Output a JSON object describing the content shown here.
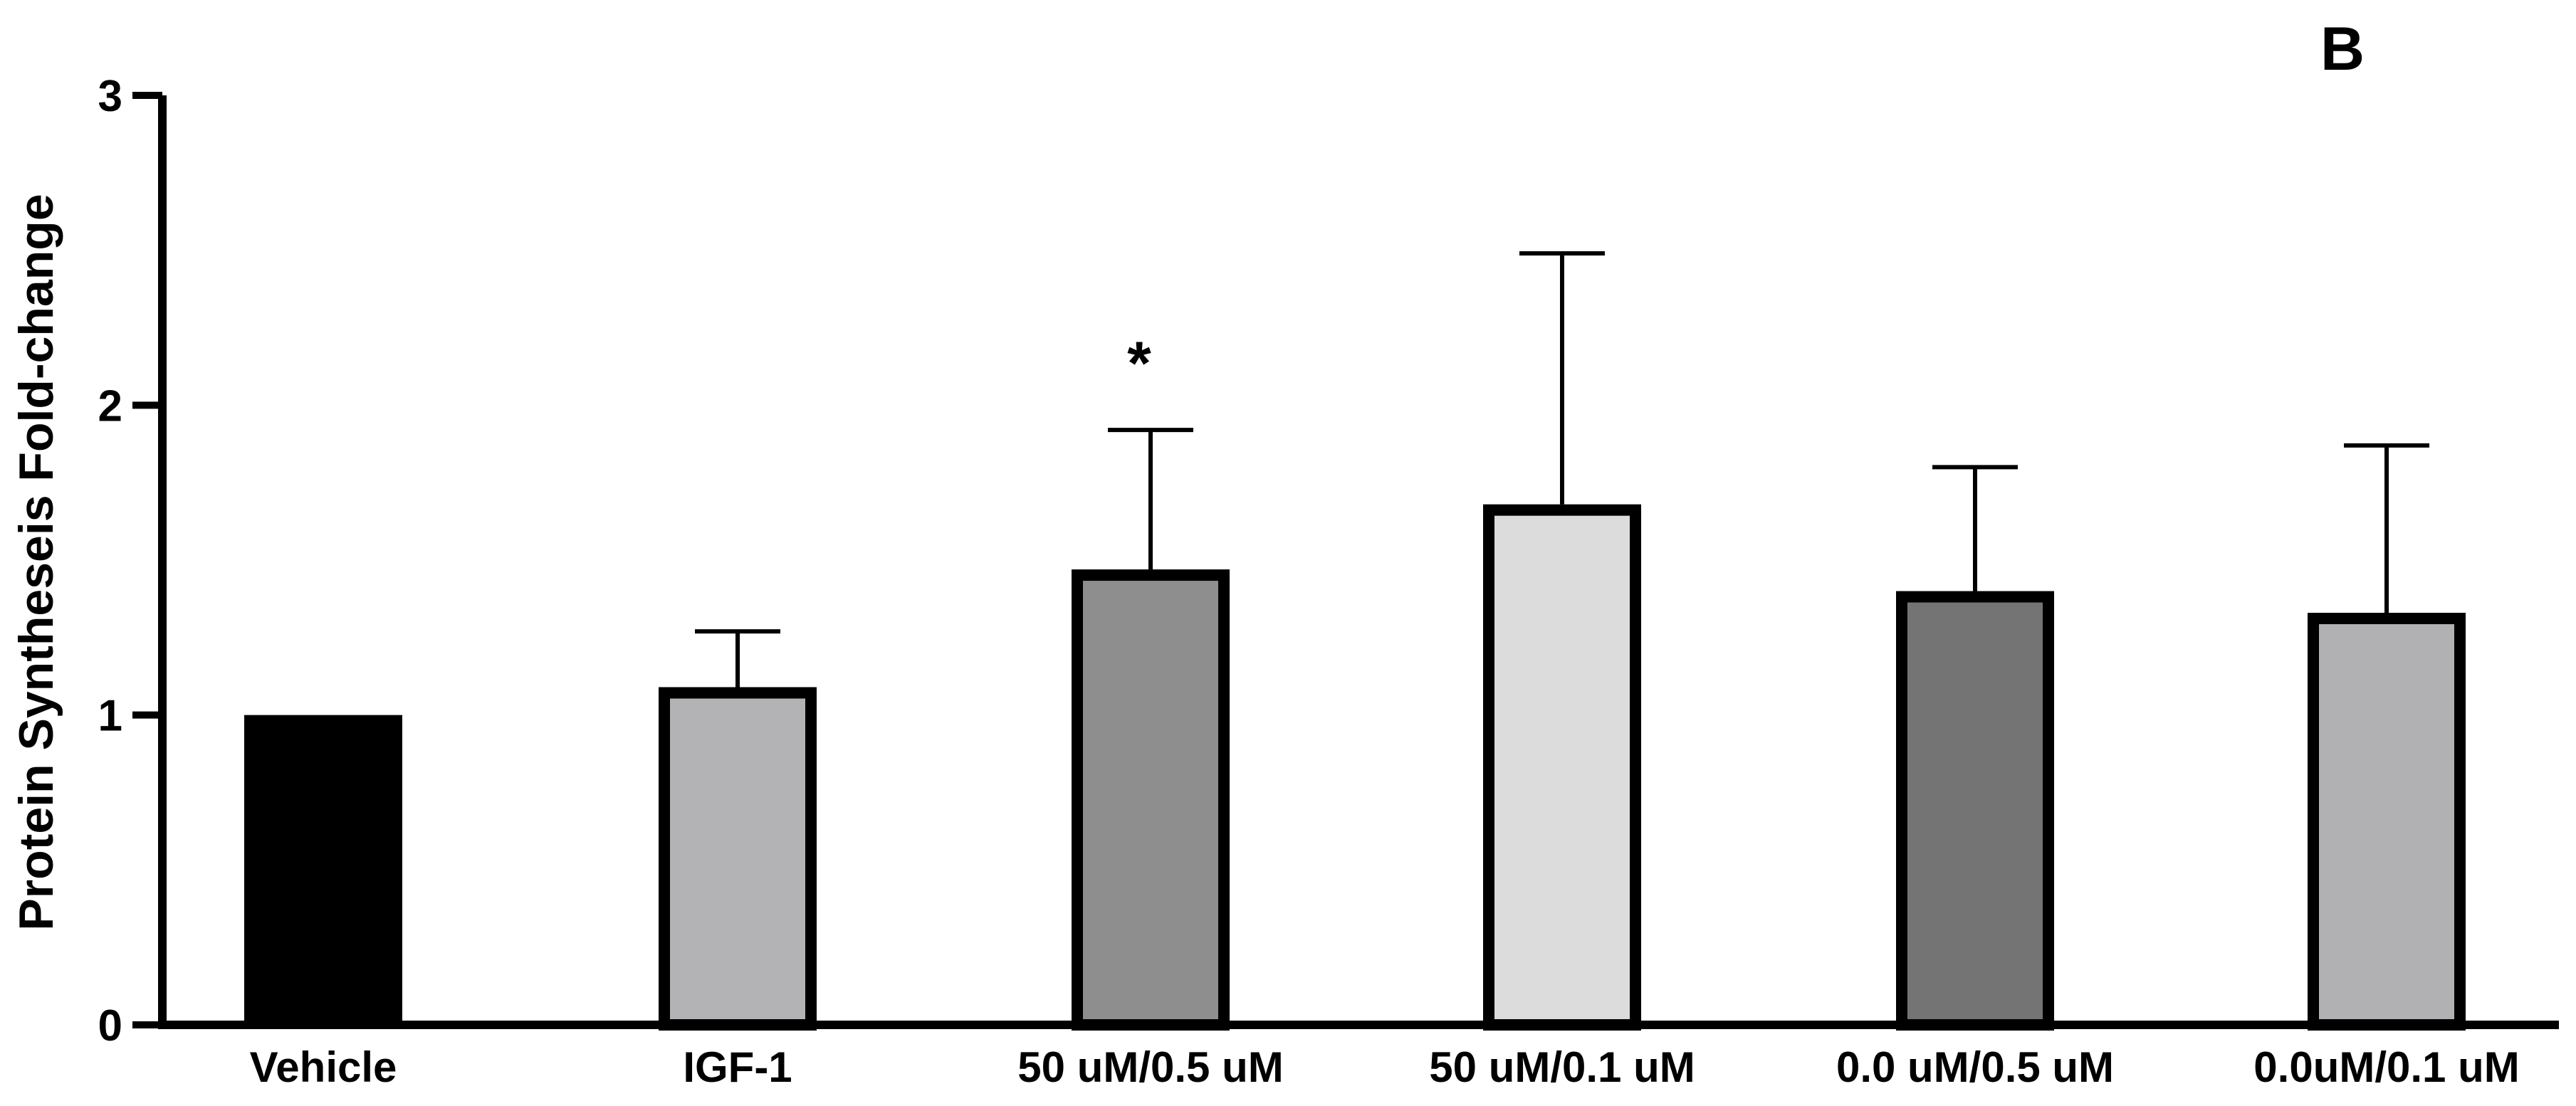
{
  "chart_data": {
    "type": "bar",
    "panel_label": "B",
    "title": "",
    "xlabel": "",
    "ylabel": "Protein Syntheseis Fold-change",
    "ylim": [
      0,
      3
    ],
    "yticks": [
      "0",
      "1",
      "2",
      "3"
    ],
    "grid": false,
    "categories": [
      "Vehicle",
      "IGF-1",
      "50 uM/0.5 uM",
      "50 uM/0.1 uM",
      "0.0 uM/0.5 uM",
      "0.0uM/0.1 uM"
    ],
    "values": [
      1.0,
      1.09,
      1.47,
      1.68,
      1.4,
      1.33
    ],
    "error_upper": [
      0.0,
      1.27,
      1.92,
      2.49,
      1.8,
      1.87
    ],
    "significance": [
      "",
      "",
      "*",
      "",
      "",
      ""
    ],
    "colors": [
      "#000000",
      "#b3b3b5",
      "#8e8e8e",
      "#dcdcdc",
      "#747474",
      "#b1b1b3"
    ]
  }
}
